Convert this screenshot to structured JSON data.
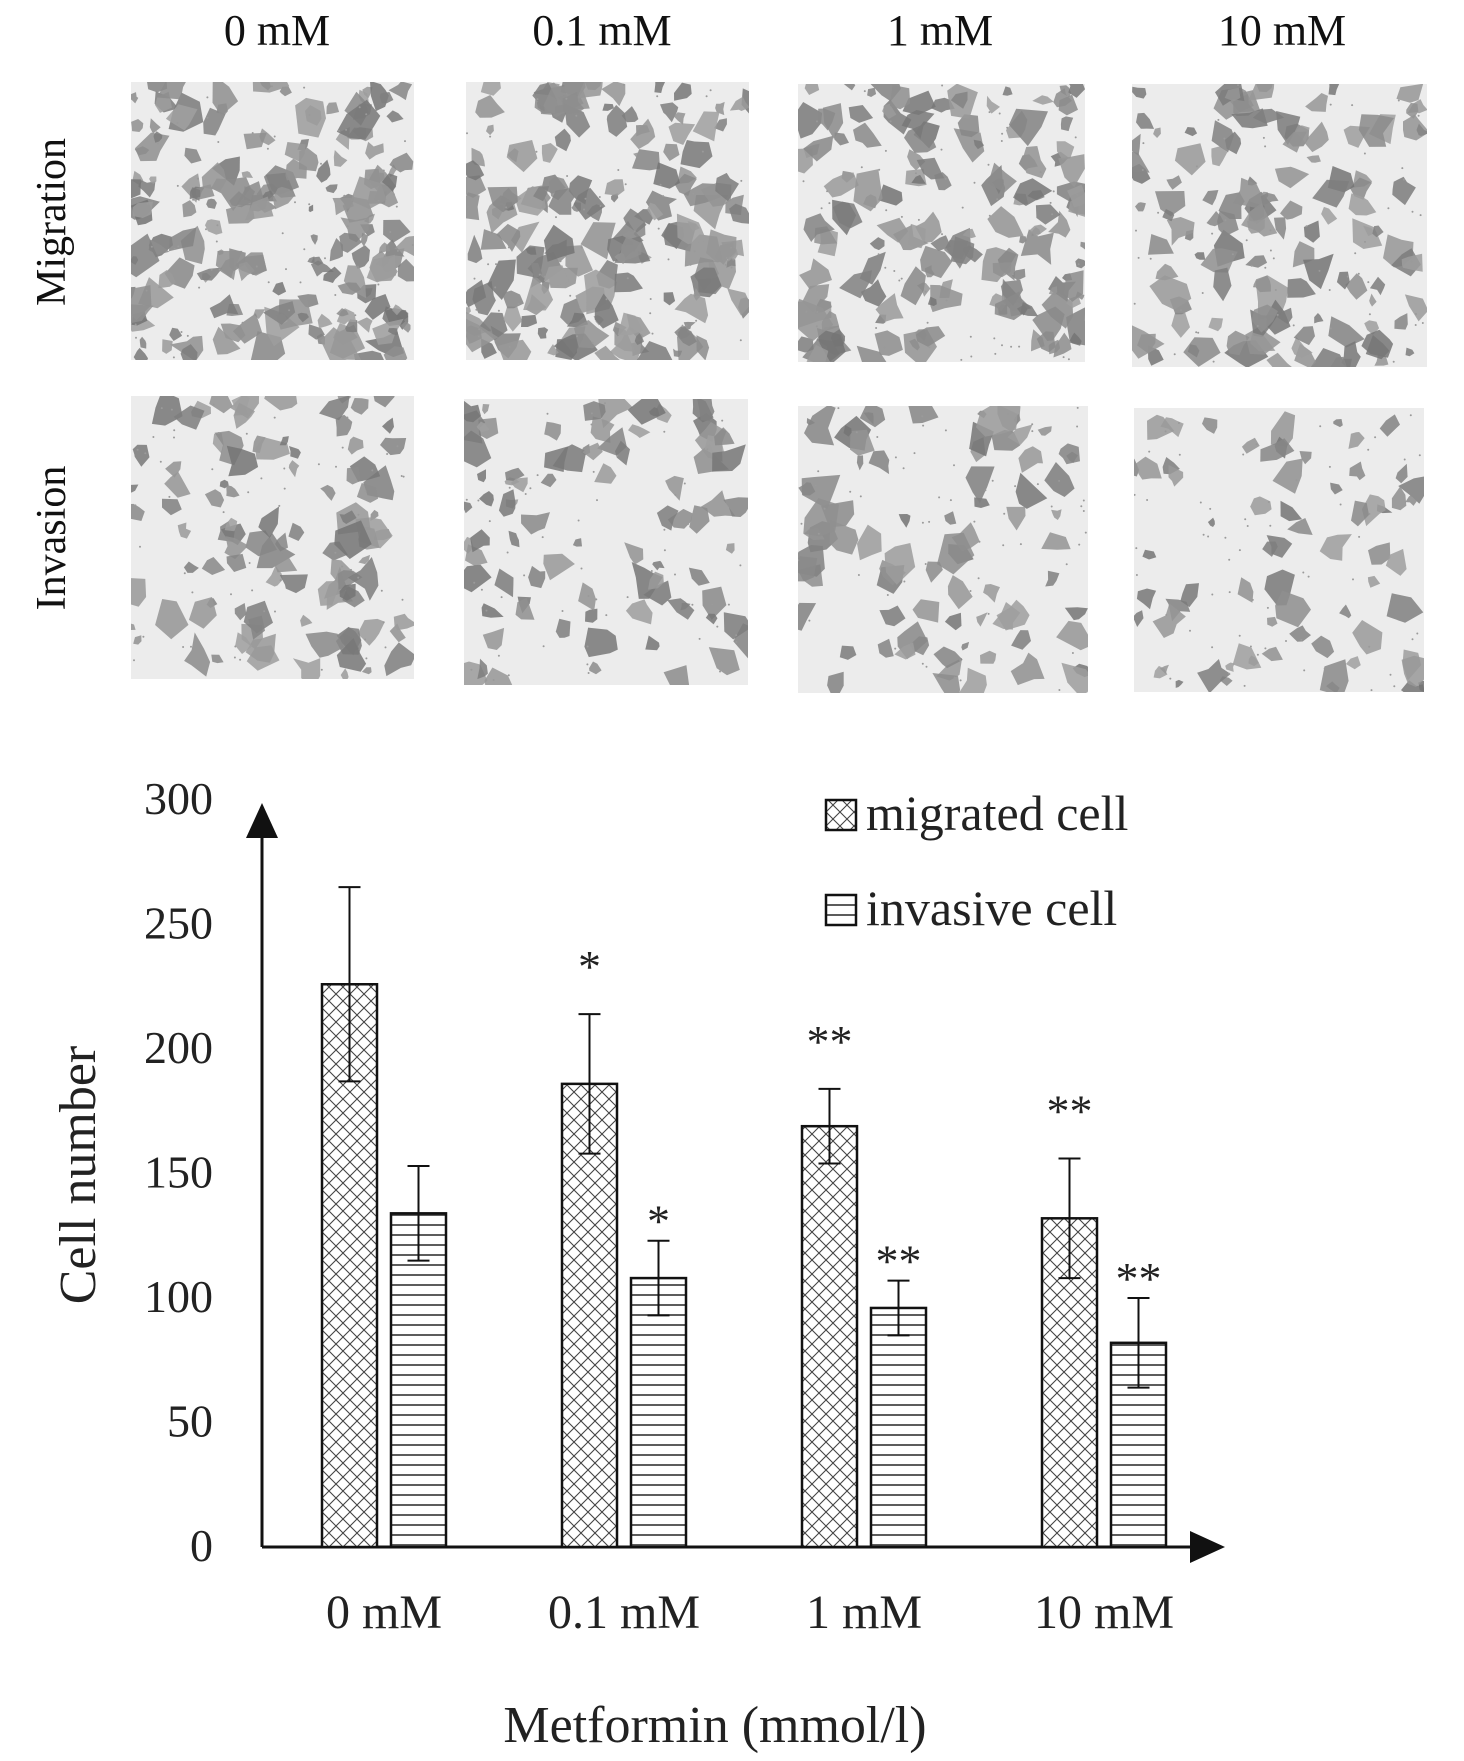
{
  "panel": {
    "columns": [
      "0 mM",
      "0.1 mM",
      "1 mM",
      "10 mM"
    ],
    "rows": [
      "Migration",
      "Invasion"
    ]
  },
  "chart_data": {
    "type": "bar",
    "title": "",
    "xlabel": "Metformin (mmol/l)",
    "ylabel": "Cell number",
    "ylim": [
      0,
      300
    ],
    "yticks": [
      0,
      50,
      100,
      150,
      200,
      250,
      300
    ],
    "categories": [
      "0 mM",
      "0.1 mM",
      "1 mM",
      "10 mM"
    ],
    "series": [
      {
        "name": "migrated cell",
        "pattern": "crosshatch",
        "values": [
          226,
          186,
          169,
          132
        ],
        "error": [
          39,
          28,
          15,
          24
        ],
        "significance": [
          "",
          "*",
          "**",
          "**"
        ]
      },
      {
        "name": "invasive cell",
        "pattern": "horizontal-lines",
        "values": [
          134,
          108,
          96,
          82
        ],
        "error": [
          19,
          15,
          11,
          18
        ],
        "significance": [
          "",
          "*",
          "**",
          "**"
        ]
      }
    ],
    "legend_position": "top-right",
    "grid": false
  }
}
